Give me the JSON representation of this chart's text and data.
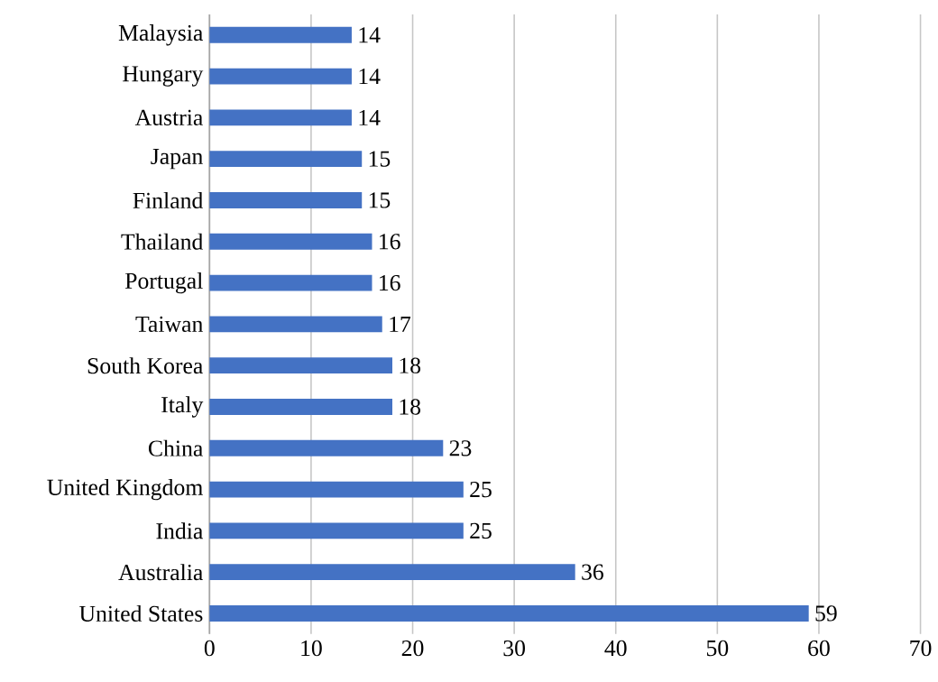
{
  "chart_data": {
    "type": "bar",
    "orientation": "horizontal",
    "categories": [
      "Malaysia",
      "Hungary",
      "Austria",
      "Japan",
      "Finland",
      "Thailand",
      "Portugal",
      "Taiwan",
      "South Korea",
      "Italy",
      "China",
      "United Kingdom",
      "India",
      "Australia",
      "United States"
    ],
    "values": [
      14,
      14,
      14,
      15,
      15,
      16,
      16,
      17,
      18,
      18,
      23,
      25,
      25,
      36,
      59
    ],
    "color": "#4472c4",
    "xlim": [
      0,
      70
    ],
    "xticks": [
      0,
      10,
      20,
      30,
      40,
      50,
      60,
      70
    ],
    "grid": "x",
    "data_labels": true
  }
}
